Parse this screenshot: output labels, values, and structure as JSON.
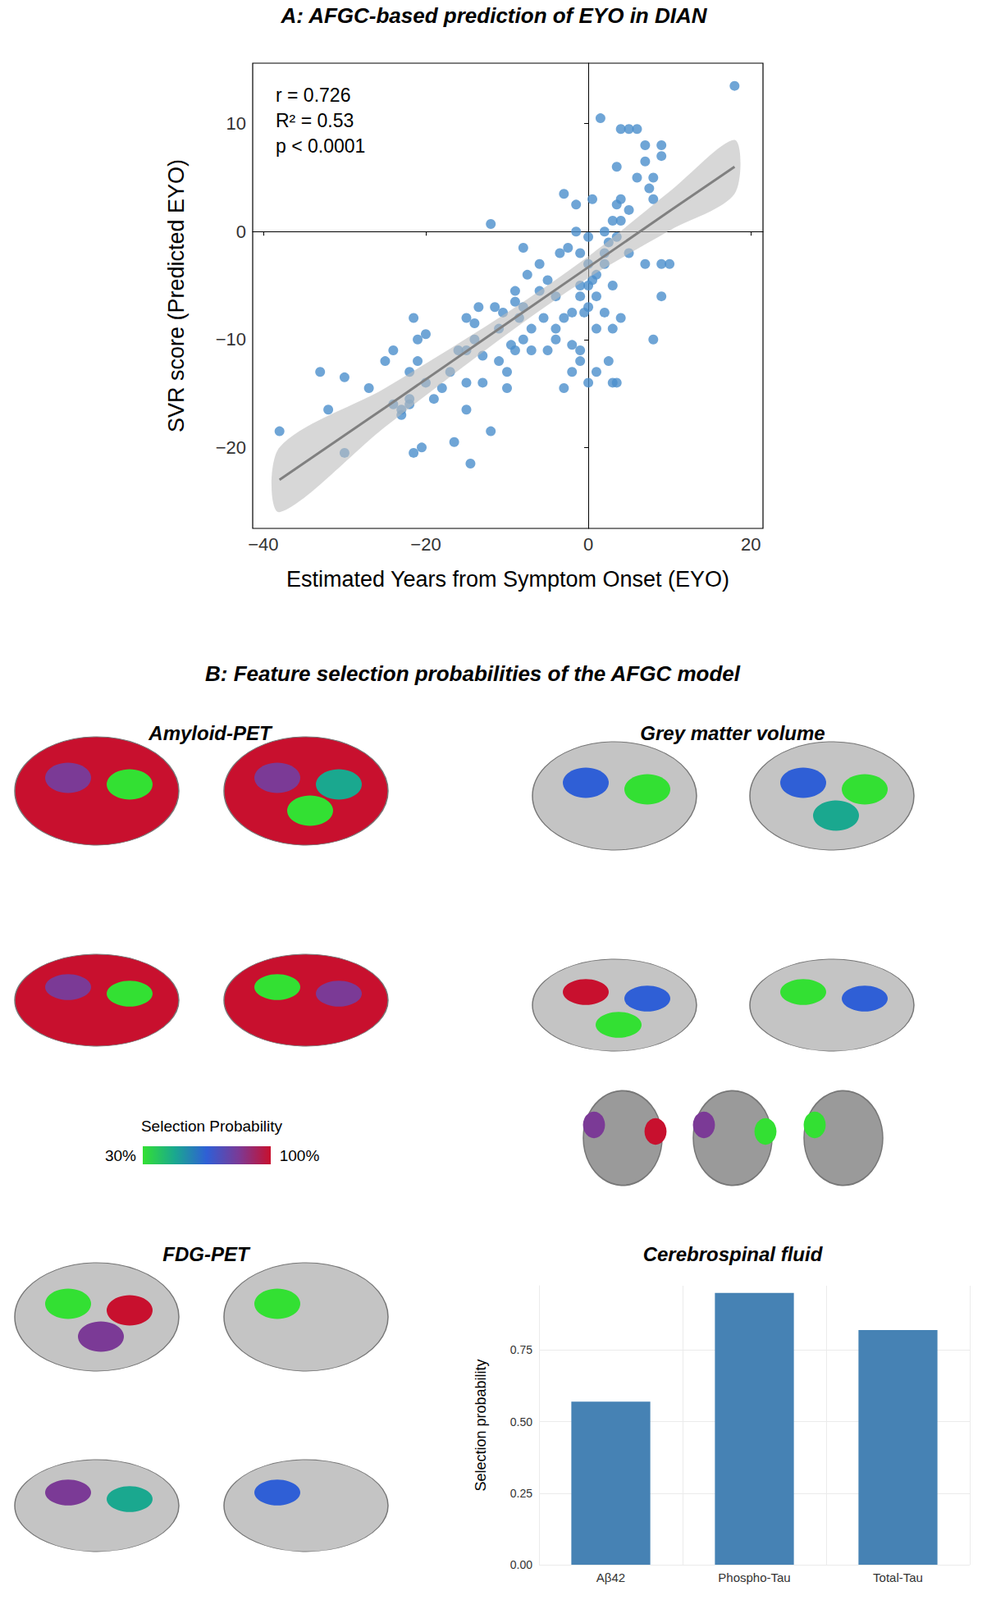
{
  "figure": {
    "title": "B: Feature selection probabilities of the AFGC model",
    "subpanels": [
      {
        "title": "Amyloid-PET",
        "views": [
          {
            "fill": "#c8102e",
            "patches": [
              "#7b3a96",
              "#33e033"
            ]
          },
          {
            "fill": "#c8102e",
            "patches": [
              "#7b3a96",
              "#1aa88f",
              "#33e033"
            ]
          },
          {
            "fill": "#c8102e",
            "patches": [
              "#7b3a96",
              "#33e033"
            ]
          },
          {
            "fill": "#c8102e",
            "patches": [
              "#33e033",
              "#7b3a96"
            ]
          }
        ]
      },
      {
        "title": "Grey matter volume",
        "views": [
          {
            "fill": "#c4c4c4",
            "patches": [
              "#2f5fd6",
              "#33e033"
            ]
          },
          {
            "fill": "#c4c4c4",
            "patches": [
              "#2f5fd6",
              "#33e033",
              "#1aa88f"
            ]
          },
          {
            "fill": "#c4c4c4",
            "patches": [
              "#c8102e",
              "#2f5fd6",
              "#33e033"
            ]
          },
          {
            "fill": "#c4c4c4",
            "patches": [
              "#33e033",
              "#2f5fd6"
            ]
          }
        ],
        "slices": [
          {
            "fill": "#9a9a9a",
            "patches": [
              "#7b3a96",
              "#c8102e"
            ]
          },
          {
            "fill": "#9a9a9a",
            "patches": [
              "#7b3a96",
              "#33e033"
            ]
          },
          {
            "fill": "#9a9a9a",
            "patches": [
              "#33e033"
            ]
          }
        ]
      },
      {
        "title": "FDG-PET",
        "views": [
          {
            "fill": "#c4c4c4",
            "patches": [
              "#33e033",
              "#c8102e",
              "#7b3a96"
            ]
          },
          {
            "fill": "#c4c4c4",
            "patches": [
              "#33e033"
            ]
          },
          {
            "fill": "#c4c4c4",
            "patches": [
              "#7b3a96",
              "#1aa88f"
            ]
          },
          {
            "fill": "#c4c4c4",
            "patches": [
              "#2f5fd6"
            ]
          }
        ]
      }
    ],
    "colorbar": {
      "title": "Selection Probability",
      "range": [
        30,
        100
      ],
      "ticks": [
        {
          "value": 30,
          "label": "30%"
        },
        {
          "value": 100,
          "label": "100%"
        }
      ],
      "colors": [
        "#33e033",
        "#1aa88f",
        "#2f5fd6",
        "#7b3a96",
        "#c8102e"
      ]
    }
  },
  "chart_data": [
    {
      "type": "scatter",
      "title": "A: AFGC-based prediction of EYO in DIAN",
      "annotations": [
        "r = 0.726",
        "R² = 0.53",
        "p < 0.0001"
      ],
      "x_label": "Estimated Years from Symptom Onset (EYO)",
      "y_label": "SVR score (Predicted EYO)",
      "color": "#4b8fcc",
      "x": [
        -38,
        -33,
        -32,
        -30,
        -30,
        -27,
        -25,
        -24,
        -24,
        -23,
        -23,
        -22,
        -22,
        -21.5,
        -21.5,
        -21,
        -21,
        -20,
        -20,
        -20.5,
        -18,
        -17,
        -16.5,
        -16,
        -15,
        -15,
        -15,
        -15,
        -14.5,
        -14,
        -14,
        -13.5,
        -13,
        -13,
        -12,
        -12,
        -11.5,
        -11,
        -11,
        -10.5,
        -10,
        -10,
        -9.5,
        -9,
        -9,
        -9,
        -8.5,
        -8,
        -8,
        -7.5,
        -7,
        -7,
        -6,
        -5.5,
        -5,
        -5,
        -4,
        -4,
        -3.5,
        -3,
        -3,
        -3,
        -2.5,
        -2,
        -2,
        -2,
        -1.5,
        -1.5,
        -1,
        -1,
        -1,
        -1,
        0,
        0,
        0,
        0,
        0,
        0.5,
        0.5,
        1,
        1,
        1,
        1.5,
        2,
        2,
        2,
        2.5,
        2.5,
        3,
        3,
        3,
        3,
        3.5,
        3.5,
        3.5,
        4,
        4,
        4,
        4,
        5,
        5,
        6,
        6,
        7,
        7,
        7,
        7.5,
        8,
        8,
        8,
        9,
        9,
        9,
        9,
        10,
        18,
        -6,
        -4,
        5,
        1,
        -1,
        -8,
        -19,
        -22,
        2,
        3.5,
        -0.5
      ],
      "values": [
        -18.5,
        -13,
        -16.5,
        -13.5,
        -20.5,
        -14.5,
        -12,
        -11,
        -16,
        -16.5,
        -17,
        -15.5,
        -13,
        -8,
        -20.5,
        -10,
        -12,
        -9.5,
        -14,
        -20,
        -14.5,
        -13,
        -19.5,
        -11,
        -8,
        -11,
        -14,
        -16.5,
        -21.5,
        -8.5,
        -10,
        -7,
        -11.5,
        -14,
        0.7,
        -18.5,
        -7,
        -9,
        -12,
        -7.5,
        -13,
        -14.5,
        -10.5,
        -5.5,
        -6.5,
        -11,
        -8,
        -1.5,
        -10,
        -4,
        -9,
        -11,
        -5.5,
        -8,
        -4.5,
        -11,
        -6,
        -10,
        -2,
        3.5,
        -8,
        -14.5,
        -1.5,
        -7.5,
        -10.5,
        -13,
        2.5,
        0,
        -2,
        -6,
        -11,
        -12,
        -0.5,
        -3,
        -5,
        -7,
        -14,
        3,
        -4.5,
        -6,
        -9,
        -13,
        10.5,
        -2,
        -3,
        -7.5,
        -1,
        -12,
        1,
        -5,
        -9,
        -14,
        2.5,
        -14,
        6,
        9.5,
        1,
        3,
        -8,
        9.5,
        2,
        9.5,
        5,
        8,
        6.5,
        -3,
        4,
        -10,
        5,
        3,
        8,
        7,
        -6,
        -3,
        -3,
        13.5,
        -3,
        -9,
        -2,
        -4,
        -5,
        -7,
        -15.5,
        -16,
        0,
        -0.5,
        -7.5
      ],
      "fit": {
        "color": "#808080",
        "x": [
          -38,
          -25,
          -10,
          0,
          10,
          18
        ],
        "y": [
          -23,
          -16.3,
          -8.5,
          -3.3,
          1.9,
          6
        ],
        "lower": [
          -26,
          -18.1,
          -9.5,
          -4.3,
          0.1,
          3.5
        ],
        "upper": [
          -20,
          -14.5,
          -7.5,
          -2.3,
          3.7,
          8.5
        ]
      },
      "xlim": [
        -41.3,
        21.5
      ],
      "ylim": [
        -27.5,
        15.6
      ],
      "xticks": [
        {
          "value": -40,
          "label": "−40"
        },
        {
          "value": -20,
          "label": "−20"
        },
        0,
        20
      ],
      "yticks": [
        {
          "value": -20,
          "label": "−20"
        },
        {
          "value": -10,
          "label": "−10"
        },
        0,
        10
      ],
      "grid": false
    },
    {
      "type": "bar",
      "title": "Cerebrospinal fluid",
      "y_label": "Selection probability",
      "categories": [
        "Aβ42",
        "Phospho-Tau",
        "Total-Tau"
      ],
      "values": [
        0.57,
        0.95,
        0.82
      ],
      "color": "#4682b4",
      "ylim": [
        0,
        0.975
      ],
      "yticks": [
        {
          "value": 0,
          "label": "0.00"
        },
        {
          "value": 0.25,
          "label": "0.25"
        },
        {
          "value": 0.5,
          "label": "0.50"
        },
        {
          "value": 0.75,
          "label": "0.75"
        }
      ],
      "grid": true
    }
  ]
}
